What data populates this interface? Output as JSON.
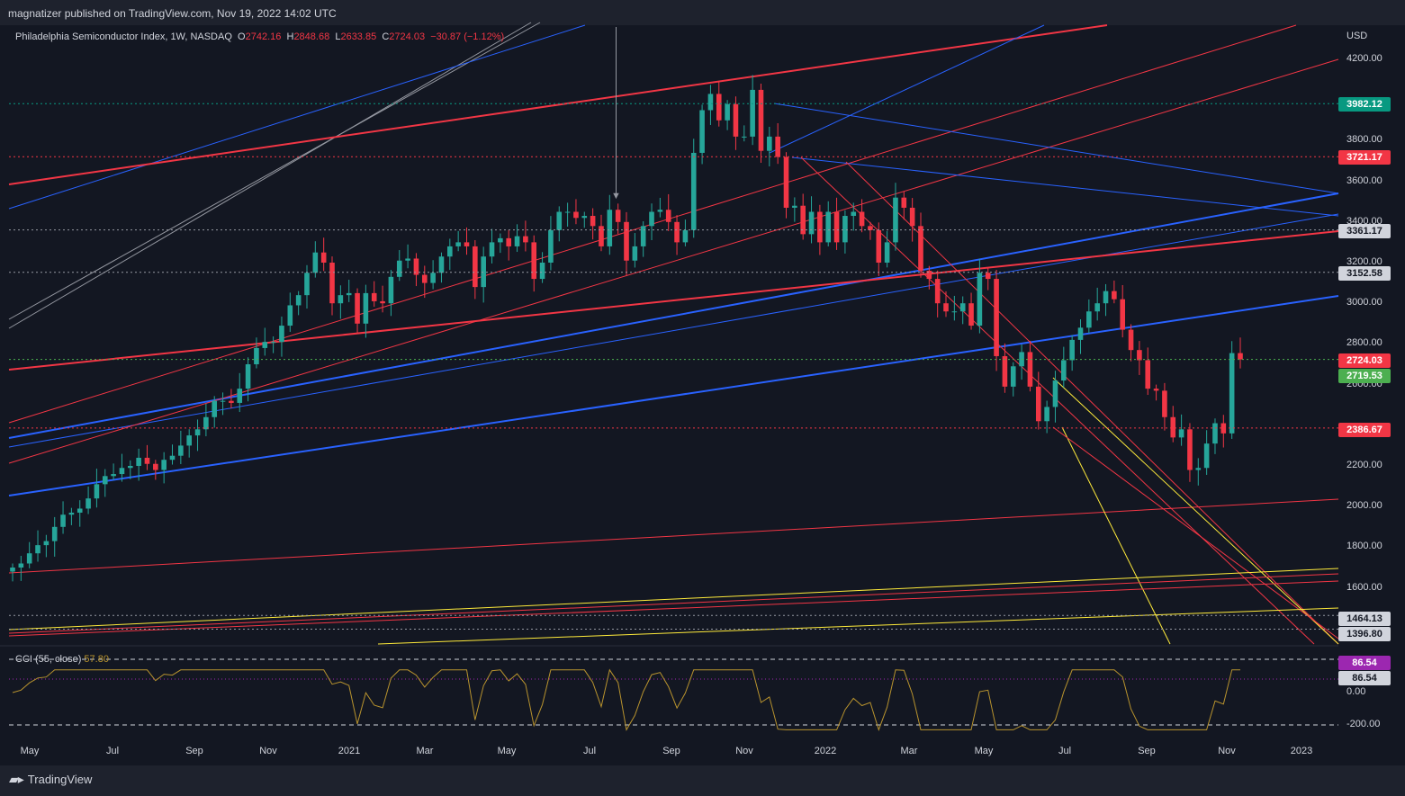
{
  "header": {
    "published": "magnatizer published on TradingView.com, Nov 19, 2022 14:02 UTC"
  },
  "legend": {
    "symbol": "Philadelphia Semiconductor Index, 1W, NASDAQ",
    "o_label": "O",
    "o": "2742.16",
    "h_label": "H",
    "h": "2848.68",
    "l_label": "L",
    "l": "2633.85",
    "c_label": "C",
    "c": "2724.03",
    "change": "−30.87 (−1.12%)"
  },
  "indicator": {
    "name": "CCI (55, close)",
    "value": "57.80"
  },
  "axis": {
    "currency": "USD",
    "price_ticks": [
      "4200.00",
      "3800.00",
      "3600.00",
      "3400.00",
      "3200.00",
      "3000.00",
      "2800.00",
      "2600.00",
      "2200.00",
      "2000.00",
      "1800.00",
      "1600.00"
    ],
    "cci_ticks": [
      "0.00",
      "-200.00"
    ],
    "time_ticks": [
      "May",
      "Jul",
      "Sep",
      "Nov",
      "2021",
      "Mar",
      "May",
      "Jul",
      "Sep",
      "Nov",
      "2022",
      "Mar",
      "May",
      "Jul",
      "Sep",
      "Nov",
      "2023"
    ]
  },
  "price_tags": {
    "t3982": "3982.12",
    "t3721": "3721.17",
    "t3361": "3361.17",
    "t3152": "3152.58",
    "t2724": "2724.03",
    "t2719": "2719.53",
    "t2386": "2386.67",
    "t1464": "1464.13",
    "t1396": "1396.80",
    "cci_a": "86.54",
    "cci_b": "86.54"
  },
  "colors": {
    "up": "#26a69a",
    "down": "#f23645",
    "bg": "#131722",
    "blue": "#2962ff",
    "red": "#f23645",
    "yellow": "#ffeb3b",
    "cci": "#b8932e"
  },
  "footer": {
    "brand": "TradingView"
  },
  "chart_data": {
    "type": "candlestick",
    "title": "Philadelphia Semiconductor Index, 1W, NASDAQ",
    "ylabel": "USD",
    "ylim": [
      1350,
      4300
    ],
    "x_range": [
      "2020-04-27",
      "2023-01-30"
    ],
    "grid": false,
    "series": [
      {
        "name": "weekly close (approx)",
        "values": [
          1700,
          1720,
          1770,
          1810,
          1830,
          1900,
          1960,
          1970,
          1990,
          2040,
          2110,
          2150,
          2160,
          2190,
          2200,
          2240,
          2210,
          2180,
          2230,
          2250,
          2300,
          2350,
          2380,
          2440,
          2520,
          2520,
          2510,
          2580,
          2700,
          2780,
          2810,
          2810,
          2890,
          2990,
          3040,
          3150,
          3250,
          3200,
          3000,
          3040,
          3050,
          2900,
          3050,
          3010,
          3000,
          3130,
          3210,
          3220,
          3140,
          3100,
          3150,
          3230,
          3280,
          3300,
          3280,
          3080,
          3230,
          3300,
          3320,
          3280,
          3330,
          3300,
          3120,
          3200,
          3360,
          3450,
          3450,
          3420,
          3430,
          3380,
          3280,
          3460,
          3400,
          3210,
          3280,
          3380,
          3450,
          3460,
          3400,
          3300,
          3360,
          3740,
          3950,
          4030,
          3900,
          3980,
          3820,
          3820,
          4050,
          3750,
          3820,
          3720,
          3470,
          3480,
          3340,
          3450,
          3300,
          3450,
          3300,
          3430,
          3450,
          3380,
          3360,
          3200,
          3300,
          3520,
          3470,
          3380,
          3160,
          3120,
          3000,
          2960,
          2960,
          3000,
          2890,
          3150,
          3120,
          2740,
          2590,
          2690,
          2760,
          2590,
          2420,
          2490,
          2620,
          2720,
          2820,
          2880,
          2960,
          3000,
          3060,
          3020,
          2870,
          2770,
          2720,
          2580,
          2570,
          2440,
          2340,
          2380,
          2180,
          2190,
          2310,
          2410,
          2360,
          2755,
          2724
        ]
      }
    ],
    "levels": [
      3982.12,
      3721.17,
      3361.17,
      3152.58,
      2724.03,
      2719.53,
      2386.67,
      1464.13,
      1396.8
    ],
    "cci": {
      "name": "CCI (55, close)",
      "last": 57.8,
      "bands": [
        86.54,
        0,
        -200
      ]
    }
  }
}
